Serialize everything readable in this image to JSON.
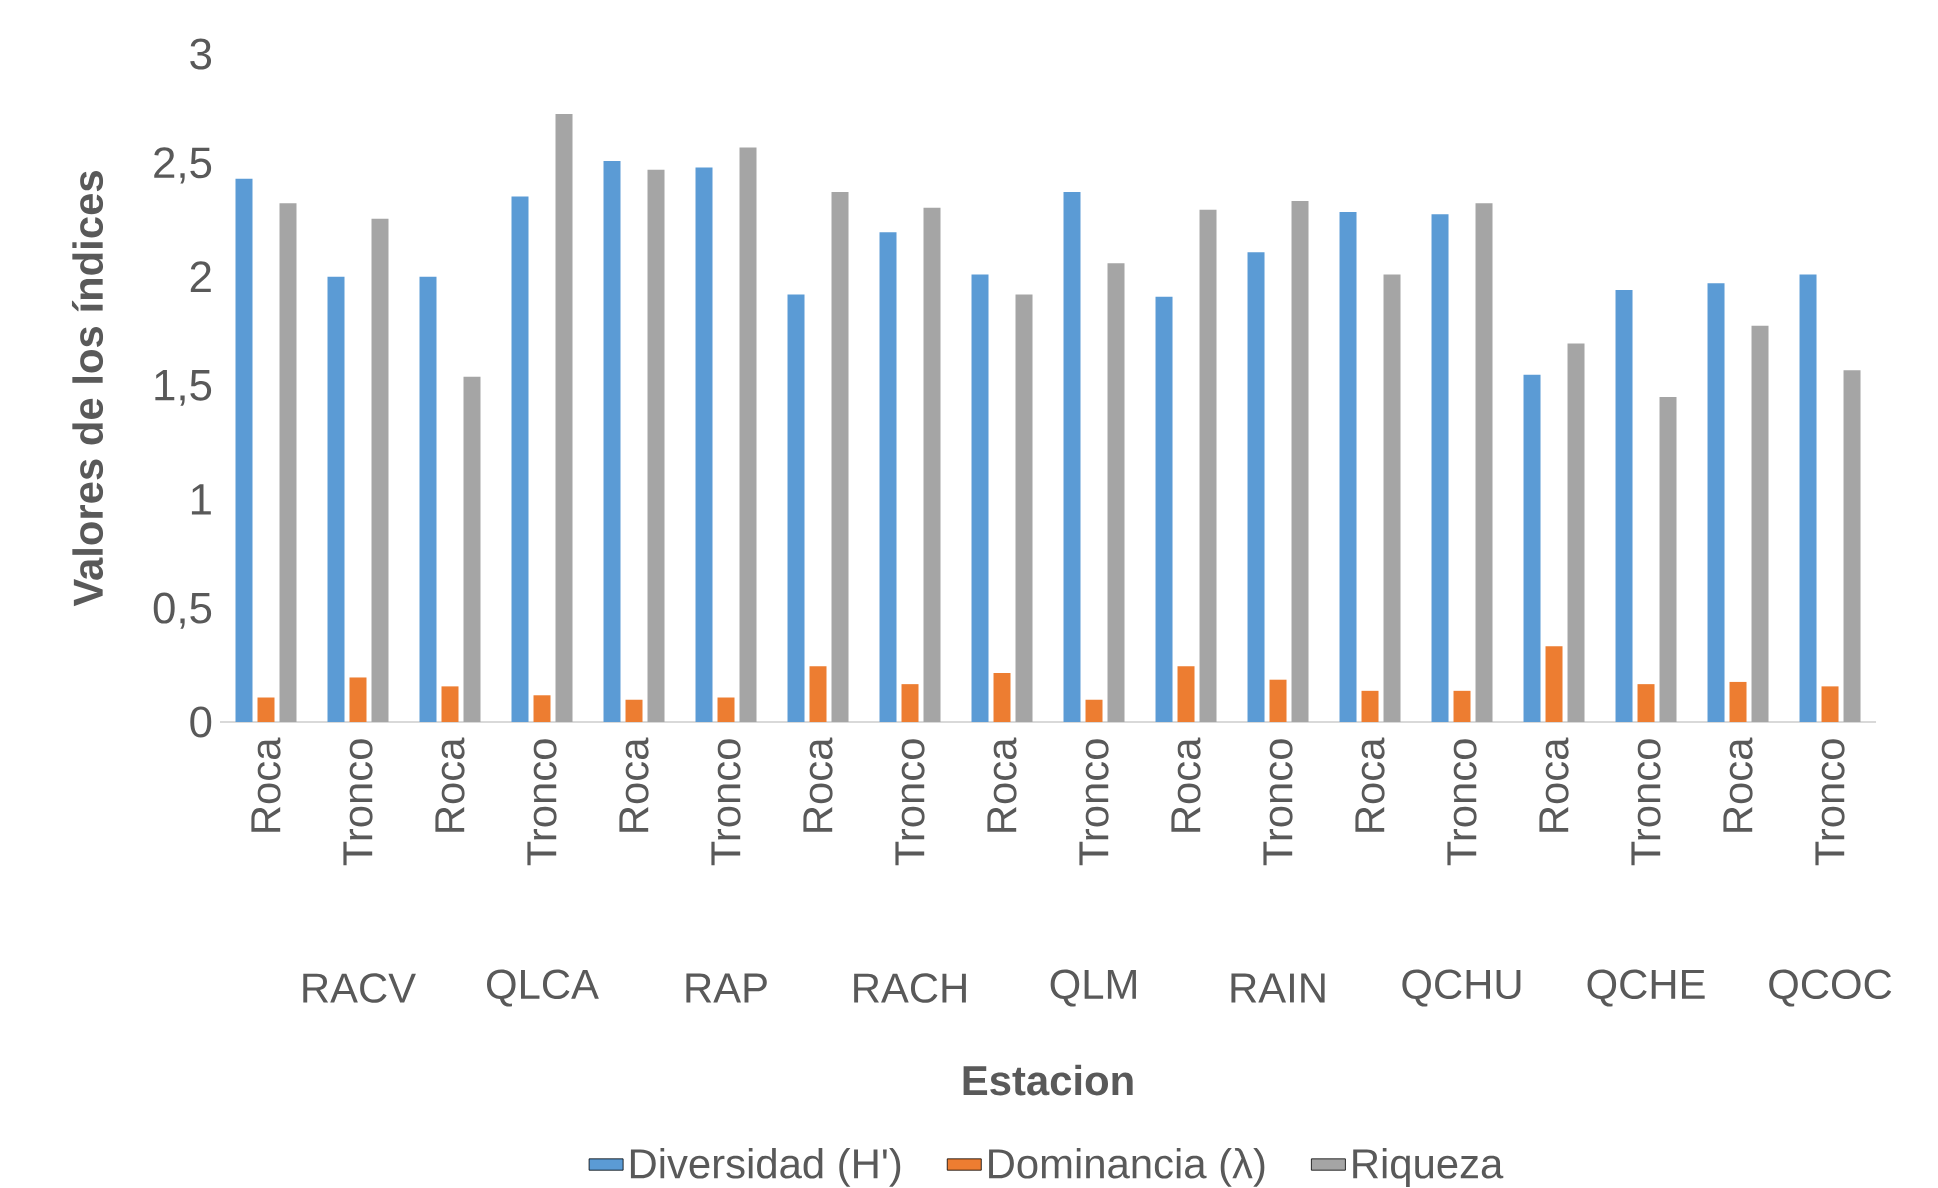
{
  "chart_data": {
    "type": "bar",
    "xlabel": "Estacion",
    "ylabel": "Valores de los índices",
    "categories": [
      "Roca",
      "Tronco",
      "Roca",
      "Tronco",
      "Roca",
      "Tronco",
      "Roca",
      "Tronco",
      "Roca",
      "Tronco",
      "Roca",
      "Tronco",
      "Roca",
      "Tronco",
      "Roca",
      "Tronco",
      "Roca",
      "Tronco"
    ],
    "annotations": [
      "RACV",
      "QLCA",
      "RAP",
      "RACH",
      "QLM",
      "RAIN",
      "QCHU",
      "QCHE",
      "QCOC"
    ],
    "series": [
      {
        "name": "Diversidad (H')",
        "color": "#5b9bd5",
        "values": [
          2.44,
          2.0,
          2.0,
          2.36,
          2.52,
          2.49,
          1.92,
          2.2,
          2.01,
          2.38,
          1.91,
          2.11,
          2.29,
          2.28,
          1.56,
          1.94,
          1.97,
          2.01
        ]
      },
      {
        "name": "Dominancia (λ)",
        "color": "#ed7d31",
        "values": [
          0.11,
          0.2,
          0.16,
          0.12,
          0.1,
          0.11,
          0.25,
          0.17,
          0.22,
          0.1,
          0.25,
          0.19,
          0.14,
          0.14,
          0.34,
          0.17,
          0.18,
          0.16
        ]
      },
      {
        "name": "Riqueza",
        "color": "#a5a5a5",
        "values": [
          2.33,
          2.26,
          1.55,
          2.73,
          2.48,
          2.58,
          2.38,
          2.31,
          1.92,
          2.06,
          2.3,
          2.34,
          2.01,
          2.33,
          1.7,
          1.46,
          1.78,
          1.58
        ]
      }
    ],
    "ylim": [
      0,
      3
    ],
    "yticks": [
      0,
      {
        "value": 0.5,
        "label": "0,5"
      },
      1,
      {
        "value": 1.5,
        "label": "1,5"
      },
      2,
      {
        "value": 2.5,
        "label": "2,5"
      },
      3
    ],
    "legend": "bottom"
  }
}
